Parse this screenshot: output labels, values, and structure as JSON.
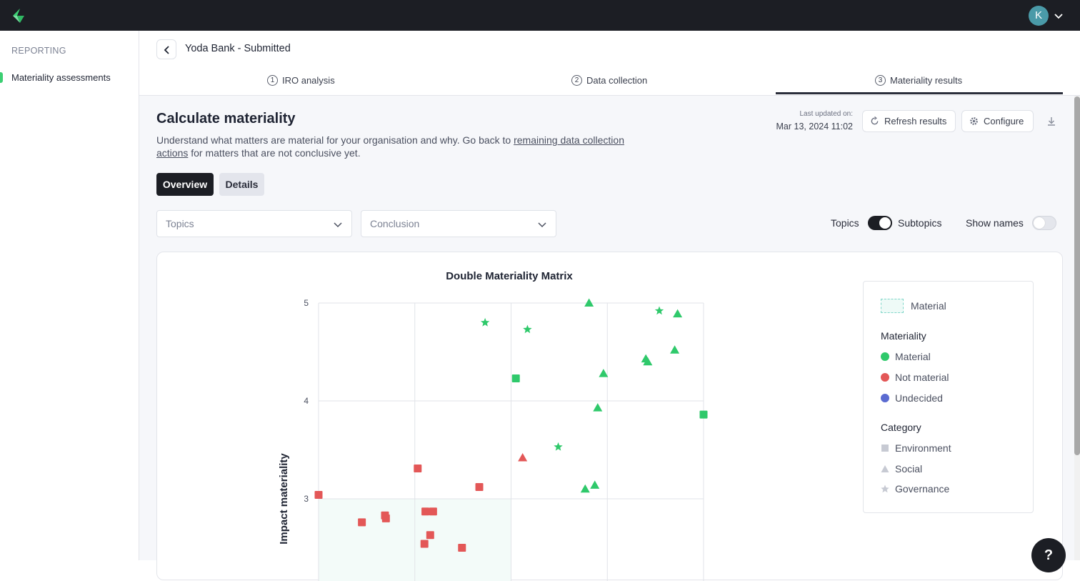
{
  "sidebar": {
    "heading": "REPORTING",
    "items": [
      {
        "label": "Materiality assessments",
        "active": true
      }
    ]
  },
  "topbar": {
    "avatar_initial": "K"
  },
  "header": {
    "title": "Yoda Bank - Submitted",
    "steps": [
      {
        "number": "1",
        "label": "IRO analysis"
      },
      {
        "number": "2",
        "label": "Data collection"
      },
      {
        "number": "3",
        "label": "Materiality results",
        "active": true
      }
    ]
  },
  "main": {
    "title": "Calculate materiality",
    "description_prefix": "Understand what matters are material for your organisation and why. Go back to ",
    "description_link": "remaining data collection actions",
    "description_suffix": " for matters that are not conclusive yet.",
    "last_updated_label": "Last updated on:",
    "last_updated_value": "Mar 13, 2024 11:02",
    "refresh_label": "Refresh results",
    "configure_label": "Configure",
    "tabs": [
      {
        "label": "Overview",
        "active": true
      },
      {
        "label": "Details"
      }
    ],
    "filters": {
      "topics_placeholder": "Topics",
      "conclusion_placeholder": "Conclusion"
    },
    "toggle_topics_label": "Topics",
    "toggle_subtopics_label": "Subtopics",
    "toggle_subtopics_on": true,
    "show_names_label": "Show names",
    "show_names_on": false
  },
  "legend": {
    "material_box_label": "Material",
    "materiality_heading": "Materiality",
    "materiality_items": [
      {
        "label": "Material",
        "color": "#2fc96b"
      },
      {
        "label": "Not material",
        "color": "#e35757"
      },
      {
        "label": "Undecided",
        "color": "#5b6bd1"
      }
    ],
    "category_heading": "Category",
    "category_items": [
      {
        "label": "Environment",
        "icon": "square-icon"
      },
      {
        "label": "Social",
        "icon": "triangle-icon"
      },
      {
        "label": "Governance",
        "icon": "star-icon"
      }
    ]
  },
  "chart_data": {
    "type": "scatter",
    "title": "Double Materiality Matrix",
    "ylabel": "Impact materiality",
    "xlabel": "",
    "ylim": [
      2.4,
      5
    ],
    "yticks": [
      "5",
      "4",
      "3"
    ],
    "xlim": [
      1,
      5
    ],
    "grid": true,
    "material_threshold": {
      "x": 3,
      "y": 3
    },
    "points": [
      {
        "x": 2.73,
        "y": 4.8,
        "shape": "star",
        "status": "material"
      },
      {
        "x": 3.17,
        "y": 4.73,
        "shape": "star",
        "status": "material"
      },
      {
        "x": 3.81,
        "y": 5.0,
        "shape": "triangle",
        "status": "material"
      },
      {
        "x": 4.54,
        "y": 4.92,
        "shape": "star",
        "status": "material"
      },
      {
        "x": 4.73,
        "y": 4.89,
        "shape": "triangle",
        "status": "material"
      },
      {
        "x": 4.7,
        "y": 4.52,
        "shape": "triangle",
        "status": "material"
      },
      {
        "x": 4.4,
        "y": 4.43,
        "shape": "triangle",
        "status": "material"
      },
      {
        "x": 4.42,
        "y": 4.4,
        "shape": "triangle",
        "status": "material"
      },
      {
        "x": 3.96,
        "y": 4.28,
        "shape": "triangle",
        "status": "material"
      },
      {
        "x": 3.05,
        "y": 4.23,
        "shape": "square",
        "status": "material"
      },
      {
        "x": 3.9,
        "y": 3.93,
        "shape": "triangle",
        "status": "material"
      },
      {
        "x": 5.0,
        "y": 3.86,
        "shape": "square",
        "status": "material"
      },
      {
        "x": 3.49,
        "y": 3.53,
        "shape": "star",
        "status": "material"
      },
      {
        "x": 3.12,
        "y": 3.42,
        "shape": "triangle",
        "status": "not material"
      },
      {
        "x": 3.77,
        "y": 3.1,
        "shape": "triangle",
        "status": "material"
      },
      {
        "x": 3.87,
        "y": 3.14,
        "shape": "triangle",
        "status": "material"
      },
      {
        "x": 2.03,
        "y": 3.31,
        "shape": "square",
        "status": "not material"
      },
      {
        "x": 2.67,
        "y": 3.12,
        "shape": "square",
        "status": "not material"
      },
      {
        "x": 1.0,
        "y": 3.04,
        "shape": "square",
        "status": "not material"
      },
      {
        "x": 1.45,
        "y": 2.76,
        "shape": "square",
        "status": "not material"
      },
      {
        "x": 1.69,
        "y": 2.83,
        "shape": "square",
        "status": "not material"
      },
      {
        "x": 1.7,
        "y": 2.8,
        "shape": "square",
        "status": "not material"
      },
      {
        "x": 2.11,
        "y": 2.87,
        "shape": "square",
        "status": "not material"
      },
      {
        "x": 2.19,
        "y": 2.87,
        "shape": "square",
        "status": "not material"
      },
      {
        "x": 2.16,
        "y": 2.63,
        "shape": "square",
        "status": "not material"
      },
      {
        "x": 2.1,
        "y": 2.54,
        "shape": "square",
        "status": "not material"
      },
      {
        "x": 2.49,
        "y": 2.5,
        "shape": "square",
        "status": "not material"
      }
    ]
  }
}
